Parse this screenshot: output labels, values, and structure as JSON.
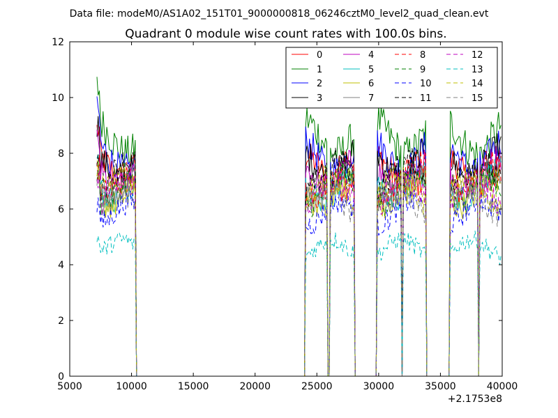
{
  "figure": {
    "suptitle": "Data file: modeM0/AS1A02_151T01_9000000818_06246cztM0_level2_quad_clean.evt"
  },
  "chart_data": {
    "type": "line",
    "title": "Quadrant 0 module wise count rates with 100.0s bins.",
    "xlabel": "",
    "ylabel": "",
    "x_offset_label": "+2.1753e8",
    "xlim": [
      5000,
      40000
    ],
    "ylim": [
      0,
      12
    ],
    "xticks": [
      5000,
      10000,
      15000,
      20000,
      25000,
      30000,
      35000,
      40000
    ],
    "xtick_labels": [
      "5000",
      "10000",
      "15000",
      "20000",
      "25000",
      "30000",
      "35000",
      "40000"
    ],
    "yticks": [
      0,
      2,
      4,
      6,
      8,
      10,
      12
    ],
    "ytick_labels": [
      "0",
      "2",
      "4",
      "6",
      "8",
      "10",
      "12"
    ],
    "bin_width": 100,
    "segments": [
      [
        7200,
        10300
      ],
      [
        24100,
        25800
      ],
      [
        26100,
        28000
      ],
      [
        29900,
        31800
      ],
      [
        32000,
        33800
      ],
      [
        35800,
        38000
      ],
      [
        38200,
        39900
      ]
    ],
    "legend": {
      "location": "top-right",
      "ncol": 4
    },
    "series": [
      {
        "name": "0",
        "color": "#ff0000",
        "style": "solid",
        "level": 7.9
      },
      {
        "name": "1",
        "color": "#008000",
        "style": "solid",
        "level": 9.3
      },
      {
        "name": "2",
        "color": "#0000ff",
        "style": "solid",
        "level": 8.6
      },
      {
        "name": "3",
        "color": "#000000",
        "style": "solid",
        "level": 8.3
      },
      {
        "name": "4",
        "color": "#bf00bf",
        "style": "solid",
        "level": 7.9
      },
      {
        "name": "5",
        "color": "#00bfbf",
        "style": "solid",
        "level": 7.4
      },
      {
        "name": "6",
        "color": "#bfbf00",
        "style": "solid",
        "level": 7.1
      },
      {
        "name": "7",
        "color": "#808080",
        "style": "solid",
        "level": 7.3
      },
      {
        "name": "8",
        "color": "#ff0000",
        "style": "dashed",
        "level": 7.6
      },
      {
        "name": "9",
        "color": "#008000",
        "style": "dashed",
        "level": 7.2
      },
      {
        "name": "10",
        "color": "#0000ff",
        "style": "dashed",
        "level": 6.3
      },
      {
        "name": "11",
        "color": "#000000",
        "style": "dashed",
        "level": 7.7
      },
      {
        "name": "12",
        "color": "#bf00bf",
        "style": "dashed",
        "level": 7.0
      },
      {
        "name": "13",
        "color": "#00bfbf",
        "style": "dashed",
        "level": 4.9
      },
      {
        "name": "14",
        "color": "#bfbf00",
        "style": "dashed",
        "level": 7.1
      },
      {
        "name": "15",
        "color": "#808080",
        "style": "dashed",
        "level": 6.7
      }
    ]
  }
}
